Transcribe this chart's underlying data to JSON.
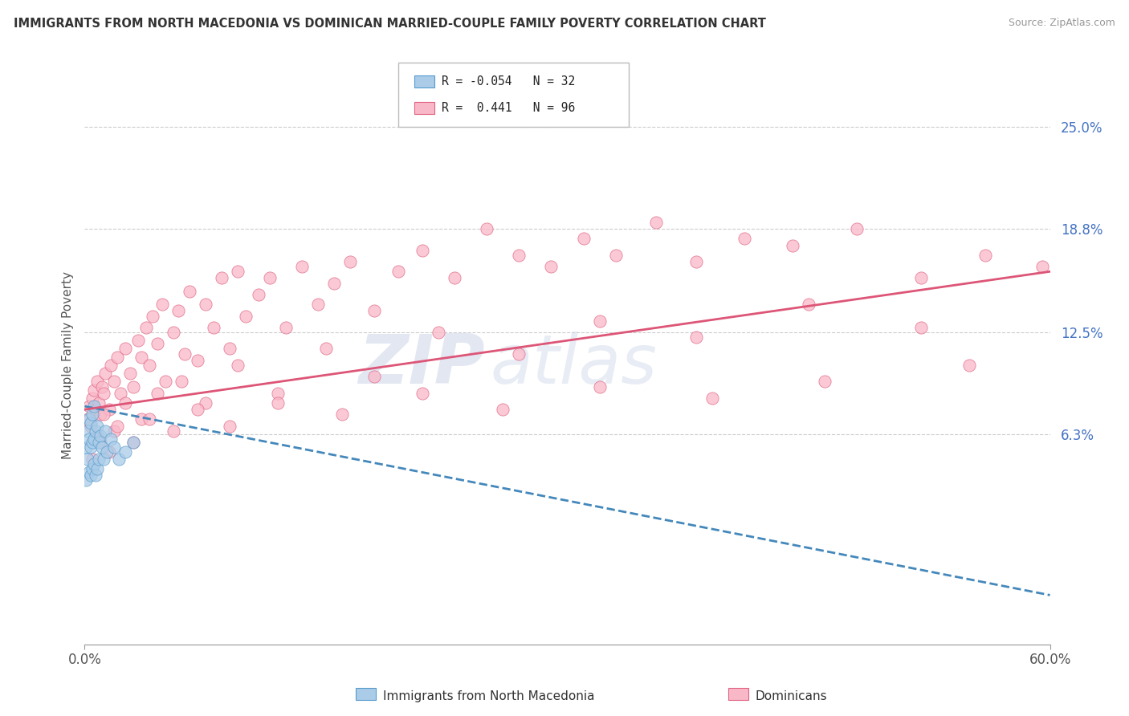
{
  "title": "IMMIGRANTS FROM NORTH MACEDONIA VS DOMINICAN MARRIED-COUPLE FAMILY POVERTY CORRELATION CHART",
  "source": "Source: ZipAtlas.com",
  "ylabel": "Married-Couple Family Poverty",
  "ytick_vals": [
    0.0,
    0.063,
    0.125,
    0.188,
    0.25
  ],
  "ytick_labels": [
    "",
    "6.3%",
    "12.5%",
    "18.8%",
    "25.0%"
  ],
  "xmin": 0.0,
  "xmax": 0.6,
  "ymin": -0.065,
  "ymax": 0.275,
  "blue_color": "#aacce8",
  "blue_edge": "#5599cc",
  "pink_color": "#f9b8c8",
  "pink_edge": "#e06080",
  "blue_trend_color": "#4488bb",
  "pink_trend_color": "#dd5577",
  "grid_color": "#cccccc",
  "watermark": "ZIPAtlas",
  "watermark_color": "#ccd5e8",
  "axis_label_color": "#4472c4",
  "title_color": "#333333",
  "blue_trend_x": [
    0.0,
    0.6
  ],
  "blue_trend_y": [
    0.08,
    -0.035
  ],
  "pink_trend_x": [
    0.0,
    0.6
  ],
  "pink_trend_y": [
    0.078,
    0.162
  ],
  "blue_x": [
    0.001,
    0.001,
    0.002,
    0.002,
    0.003,
    0.003,
    0.003,
    0.004,
    0.004,
    0.004,
    0.005,
    0.005,
    0.005,
    0.006,
    0.006,
    0.006,
    0.007,
    0.007,
    0.008,
    0.008,
    0.009,
    0.009,
    0.01,
    0.011,
    0.012,
    0.013,
    0.014,
    0.016,
    0.018,
    0.021,
    0.025,
    0.03
  ],
  "blue_y": [
    0.035,
    0.055,
    0.048,
    0.065,
    0.04,
    0.06,
    0.072,
    0.038,
    0.055,
    0.07,
    0.042,
    0.058,
    0.075,
    0.045,
    0.06,
    0.08,
    0.038,
    0.065,
    0.042,
    0.068,
    0.048,
    0.058,
    0.062,
    0.055,
    0.048,
    0.065,
    0.052,
    0.06,
    0.055,
    0.048,
    0.052,
    0.058
  ],
  "pink_x": [
    0.002,
    0.003,
    0.004,
    0.005,
    0.006,
    0.007,
    0.008,
    0.009,
    0.01,
    0.011,
    0.012,
    0.013,
    0.015,
    0.016,
    0.018,
    0.02,
    0.022,
    0.025,
    0.028,
    0.03,
    0.033,
    0.035,
    0.038,
    0.04,
    0.042,
    0.045,
    0.048,
    0.05,
    0.055,
    0.058,
    0.062,
    0.065,
    0.07,
    0.075,
    0.08,
    0.085,
    0.09,
    0.095,
    0.1,
    0.108,
    0.115,
    0.125,
    0.135,
    0.145,
    0.155,
    0.165,
    0.18,
    0.195,
    0.21,
    0.23,
    0.25,
    0.27,
    0.29,
    0.31,
    0.33,
    0.355,
    0.38,
    0.41,
    0.44,
    0.48,
    0.52,
    0.56,
    0.595,
    0.008,
    0.012,
    0.018,
    0.025,
    0.035,
    0.045,
    0.06,
    0.075,
    0.095,
    0.12,
    0.15,
    0.18,
    0.22,
    0.27,
    0.32,
    0.38,
    0.45,
    0.52,
    0.005,
    0.01,
    0.015,
    0.02,
    0.03,
    0.04,
    0.055,
    0.07,
    0.09,
    0.12,
    0.16,
    0.21,
    0.26,
    0.32,
    0.39,
    0.46,
    0.55
  ],
  "pink_y": [
    0.072,
    0.08,
    0.068,
    0.085,
    0.09,
    0.078,
    0.095,
    0.082,
    0.075,
    0.092,
    0.088,
    0.1,
    0.078,
    0.105,
    0.095,
    0.11,
    0.088,
    0.115,
    0.1,
    0.092,
    0.12,
    0.11,
    0.128,
    0.105,
    0.135,
    0.118,
    0.142,
    0.095,
    0.125,
    0.138,
    0.112,
    0.15,
    0.108,
    0.142,
    0.128,
    0.158,
    0.115,
    0.162,
    0.135,
    0.148,
    0.158,
    0.128,
    0.165,
    0.142,
    0.155,
    0.168,
    0.138,
    0.162,
    0.175,
    0.158,
    0.188,
    0.172,
    0.165,
    0.182,
    0.172,
    0.192,
    0.168,
    0.182,
    0.178,
    0.188,
    0.158,
    0.172,
    0.165,
    0.062,
    0.075,
    0.065,
    0.082,
    0.072,
    0.088,
    0.095,
    0.082,
    0.105,
    0.088,
    0.115,
    0.098,
    0.125,
    0.112,
    0.132,
    0.122,
    0.142,
    0.128,
    0.048,
    0.058,
    0.052,
    0.068,
    0.058,
    0.072,
    0.065,
    0.078,
    0.068,
    0.082,
    0.075,
    0.088,
    0.078,
    0.092,
    0.085,
    0.095,
    0.105
  ]
}
